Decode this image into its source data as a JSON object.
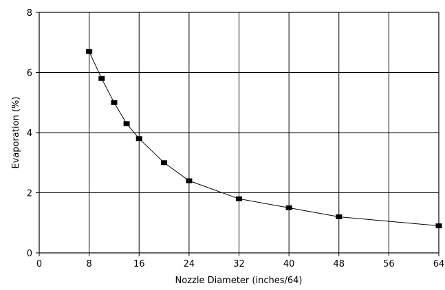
{
  "chart_data": {
    "type": "line",
    "xlabel": "Nozzle Diameter (inches/64)",
    "ylabel": "Evaporation (%)",
    "xlim": [
      0,
      64
    ],
    "ylim": [
      0,
      8
    ],
    "x_ticks": [
      "0",
      "8",
      "16",
      "24",
      "32",
      "40",
      "48",
      "56",
      "64"
    ],
    "y_ticks": [
      "0",
      "2",
      "4",
      "6",
      "8"
    ],
    "grid": true,
    "legend": "none",
    "marker": "square",
    "series": [
      {
        "x": [
          8,
          10,
          12,
          14,
          16,
          20,
          24,
          32,
          40,
          48,
          64
        ],
        "y": [
          6.7,
          5.8,
          5.0,
          4.3,
          3.8,
          3.0,
          2.4,
          1.8,
          1.5,
          1.2,
          0.9
        ]
      }
    ],
    "colors": {
      "line": "#000000",
      "marker": "#000000",
      "grid": "#000000",
      "background": "#ffffff"
    }
  }
}
